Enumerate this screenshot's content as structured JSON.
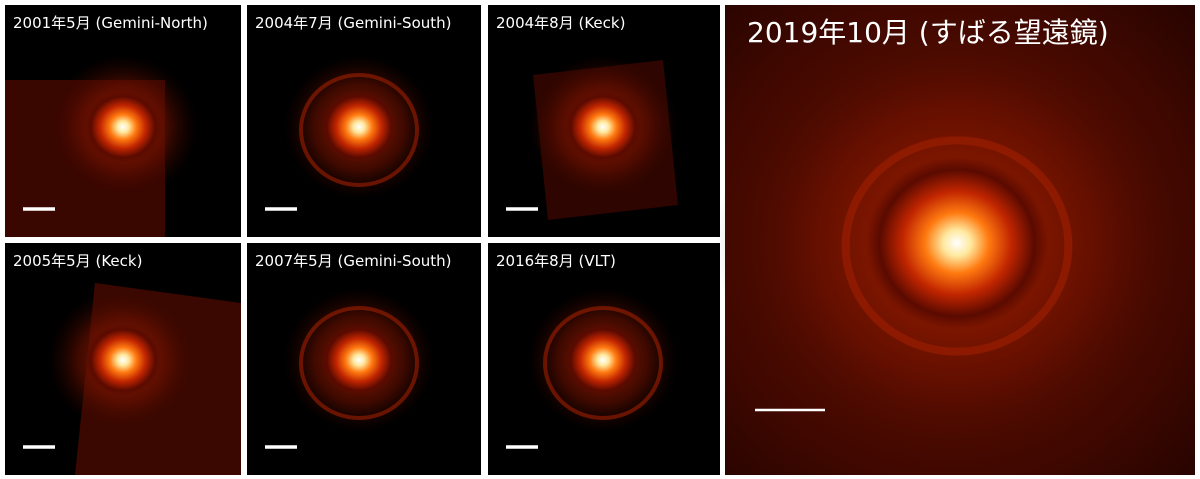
{
  "panels": [
    {
      "label": "2001年5月 (Gemini-North)"
    },
    {
      "label": "2004年7月 (Gemini-South)"
    },
    {
      "label": "2004年8月 (Keck)"
    },
    {
      "label": "2005年5月 (Keck)"
    },
    {
      "label": "2007年5月 (Gemini-South)"
    },
    {
      "label": "2016年8月 (VLT)"
    },
    {
      "label": "2019年10月 (すばる望遠鏡)"
    }
  ]
}
